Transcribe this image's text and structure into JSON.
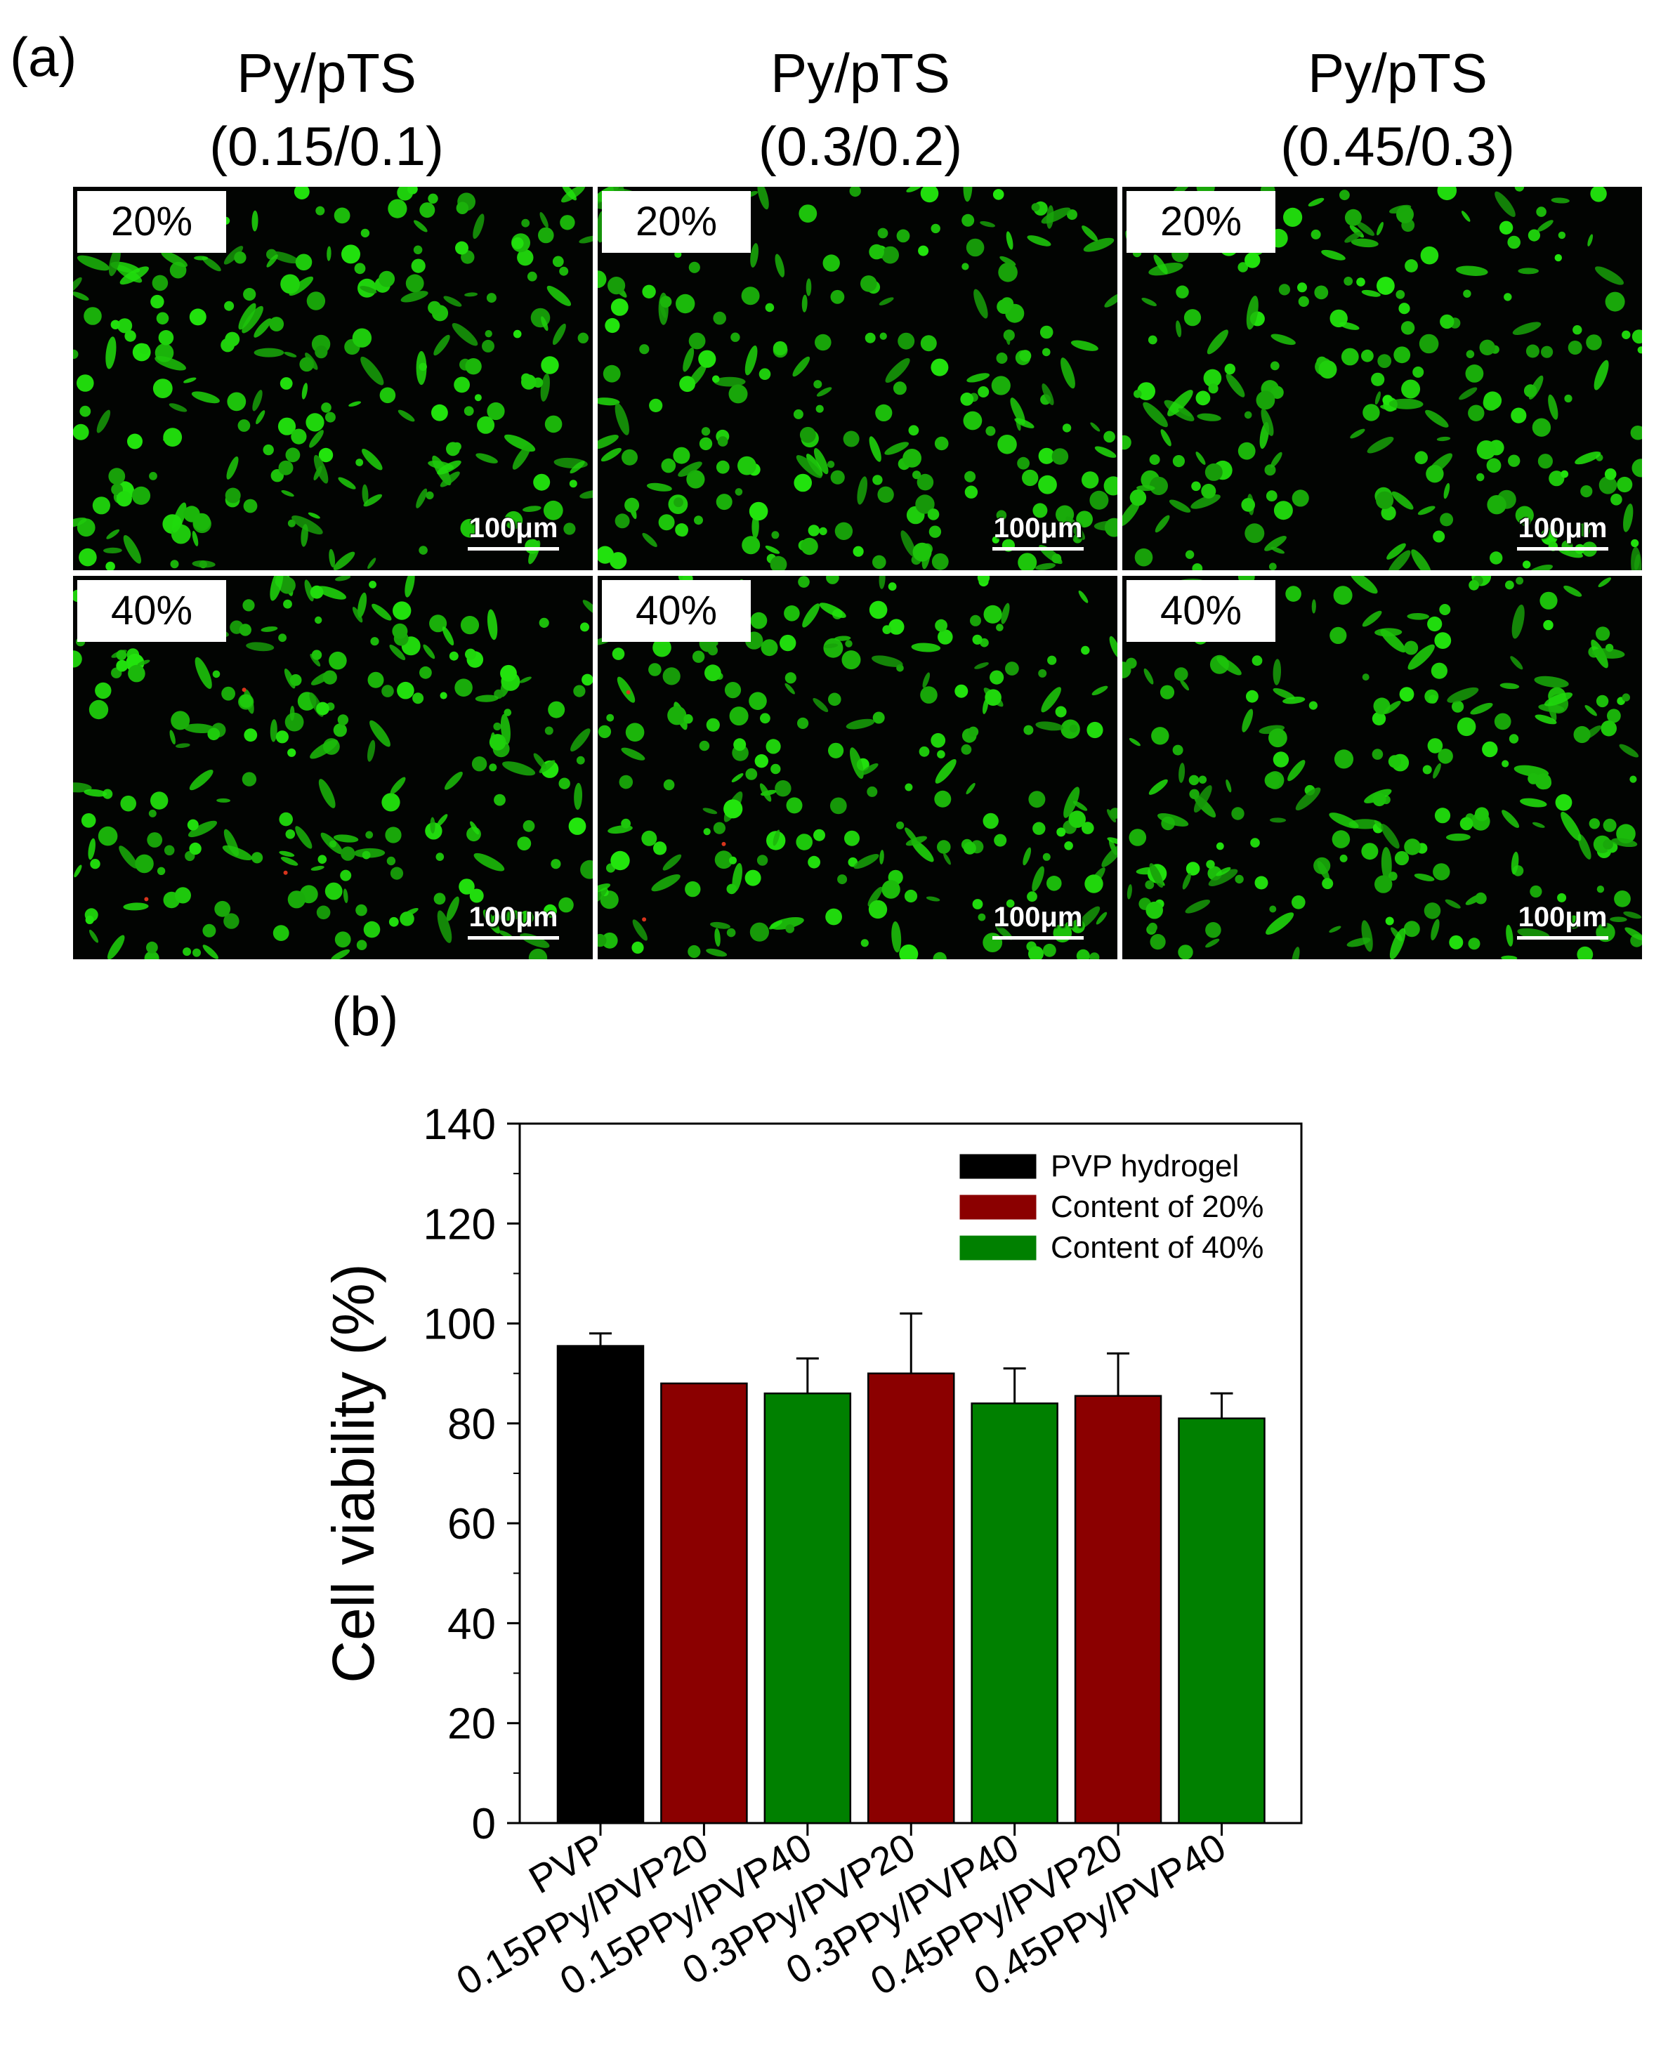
{
  "panel_a": {
    "label": "(a)",
    "columns": [
      {
        "line1": "Py/pTS",
        "line2": "(0.15/0.1)"
      },
      {
        "line1": "Py/pTS",
        "line2": "(0.3/0.2)"
      },
      {
        "line1": "Py/pTS",
        "line2": "(0.45/0.3)"
      }
    ],
    "rows": [
      "20%",
      "40%"
    ],
    "scale_bar": "100μm",
    "colors": {
      "live_cells": "#22d10f",
      "dead_cells": "#d8341c",
      "background": "#020402"
    }
  },
  "chart_data": {
    "label": "(b)",
    "type": "bar",
    "ylabel": "Cell viability (%)",
    "xlabel": "",
    "ylim": [
      0,
      140
    ],
    "yticks": [
      0,
      20,
      40,
      60,
      80,
      100,
      120,
      140
    ],
    "categories": [
      "PVP",
      "0.15PPy/PVP20",
      "0.15PPy/PVP40",
      "0.3PPy/PVP20",
      "0.3PPy/PVP40",
      "0.45PPy/PVP20",
      "0.45PPy/PVP40"
    ],
    "values": [
      95.5,
      88,
      86,
      90,
      84,
      85.5,
      81
    ],
    "errors": [
      2.5,
      0,
      7,
      12,
      7,
      8.5,
      5
    ],
    "bar_series": [
      0,
      1,
      2,
      1,
      2,
      1,
      2
    ],
    "series": [
      {
        "name": "PVP hydrogel",
        "color": "#000000"
      },
      {
        "name": "Content of 20%",
        "color": "#8b0000"
      },
      {
        "name": "Content of 40%",
        "color": "#008000"
      }
    ],
    "legend_position": "top-right",
    "grid": false
  }
}
